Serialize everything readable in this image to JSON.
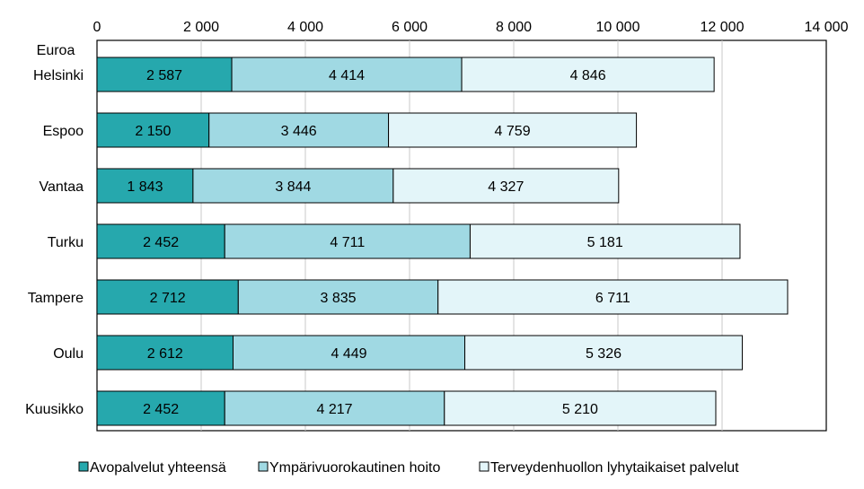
{
  "chart_data": {
    "type": "bar",
    "orientation": "horizontal",
    "stacked": true,
    "unit_label": "Euroa",
    "categories": [
      "Helsinki",
      "Espoo",
      "Vantaa",
      "Turku",
      "Tampere",
      "Oulu",
      "Kuusikko"
    ],
    "series": [
      {
        "name": "Avopalvelut yhteensä",
        "color": "#26a8ad",
        "values": [
          2587,
          2150,
          1843,
          2452,
          2712,
          2612,
          2452
        ],
        "labels": [
          "2 587",
          "2 150",
          "1 843",
          "2 452",
          "2 712",
          "2 612",
          "2 452"
        ]
      },
      {
        "name": "Ympärivuorokautinen hoito",
        "color": "#a0d9e3",
        "values": [
          4414,
          3446,
          3844,
          4711,
          3835,
          4449,
          4217
        ],
        "labels": [
          "4 414",
          "3 446",
          "3 844",
          "4 711",
          "3 835",
          "4 449",
          "4 217"
        ]
      },
      {
        "name": "Terveydenhuollon lyhytaikaiset palvelut",
        "color": "#e3f5f9",
        "values": [
          4846,
          4759,
          4327,
          5181,
          6711,
          5326,
          5210
        ],
        "labels": [
          "4 846",
          "4 759",
          "4 327",
          "5 181",
          "6 711",
          "5 326",
          "5 210"
        ]
      }
    ],
    "xlim": [
      0,
      14000
    ],
    "x_ticks": [
      0,
      2000,
      4000,
      6000,
      8000,
      10000,
      12000,
      14000
    ],
    "x_tick_labels": [
      "0",
      "2 000",
      "4 000",
      "6 000",
      "8 000",
      "10 000",
      "12 000",
      "14 000"
    ],
    "x_axis_position": "top",
    "grid": "vertical",
    "legend_position": "bottom"
  }
}
